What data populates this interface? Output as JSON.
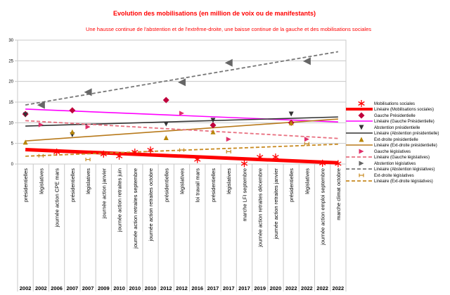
{
  "chart_data": {
    "type": "scatter",
    "title": "Evolution des mobilisations (en million de voix ou de manifestants)",
    "subtitle": "Une hausse continue de l'abstention et de l'extrême-droite, une baisse continue de la gauche et des mobilisations sociales",
    "xlabel": "",
    "ylabel": "",
    "ylim": [
      0,
      30
    ],
    "yticks": [
      0,
      5,
      10,
      15,
      20,
      25,
      30
    ],
    "grid": true,
    "legend_position": "right",
    "categories": [
      {
        "label": "présidentielles",
        "year": "2002"
      },
      {
        "label": "législatives",
        "year": "2002"
      },
      {
        "label": "journée action CPE mars",
        "year": "2006"
      },
      {
        "label": "présidentielles",
        "year": "2007"
      },
      {
        "label": "législatives",
        "year": "2007"
      },
      {
        "label": "journée action janvier",
        "year": "2009"
      },
      {
        "label": "journée action retraites juin",
        "year": "2010"
      },
      {
        "label": "journée action retraites septembre",
        "year": "2010"
      },
      {
        "label": "journée action retraites octobre",
        "year": "2010"
      },
      {
        "label": "présidentielles",
        "year": "2012"
      },
      {
        "label": "législatives",
        "year": "2012"
      },
      {
        "label": "loi travail mars",
        "year": "2016"
      },
      {
        "label": "présidentielles",
        "year": "2017"
      },
      {
        "label": "législatives",
        "year": "2017"
      },
      {
        "label": "marche LFI septembre",
        "year": "2017"
      },
      {
        "label": "journée action retraites décembre",
        "year": "2019"
      },
      {
        "label": "journée action retraites janvier",
        "year": "2020"
      },
      {
        "label": "présidentielles",
        "year": "2022"
      },
      {
        "label": "législatives",
        "year": "2022"
      },
      {
        "label": "journée action emploi septembre",
        "year": "2022"
      },
      {
        "label": "marche climat octobre",
        "year": "2022"
      }
    ],
    "series": [
      {
        "name": "Mobilisations sociales",
        "marker": "asterisk",
        "color": "#ff0000",
        "values": [
          null,
          null,
          2.9,
          null,
          null,
          2.4,
          1.9,
          2.9,
          3.4,
          null,
          null,
          1.1,
          null,
          null,
          0.1,
          1.7,
          1.7,
          null,
          null,
          0.2,
          0.1
        ],
        "trend": {
          "name": "Linéaire (Mobilisations sociales)",
          "start": 3.5,
          "end": 0.3,
          "style": "solid-thick"
        }
      },
      {
        "name": "Gauche Présidentielle",
        "marker": "diamond",
        "color": "#c0003c",
        "values": [
          12.1,
          null,
          null,
          13.0,
          null,
          null,
          null,
          null,
          null,
          15.5,
          null,
          null,
          9.4,
          null,
          null,
          null,
          null,
          10.0,
          null,
          null,
          null
        ],
        "trend": {
          "name": "Linéaire (Gauche Présidentielle)",
          "start": 13.3,
          "end": 10.2,
          "color": "#ff00ff",
          "style": "solid"
        }
      },
      {
        "name": "Abstention présidentielle",
        "marker": "triangle-down",
        "color": "#333333",
        "values": [
          11.9,
          null,
          null,
          7.1,
          null,
          null,
          null,
          null,
          null,
          9.7,
          null,
          null,
          10.6,
          null,
          null,
          null,
          null,
          12.1,
          null,
          null,
          null
        ],
        "trend": {
          "name": "Linéaire (Abstention présidentielle)",
          "start": 9.2,
          "end": 11.4,
          "color": "#333333",
          "style": "solid"
        }
      },
      {
        "name": "Ext-droite présidentielle",
        "marker": "triangle-up",
        "color": "#b8860b",
        "values": [
          5.3,
          null,
          null,
          7.8,
          null,
          null,
          null,
          null,
          null,
          6.4,
          null,
          null,
          7.8,
          null,
          null,
          null,
          null,
          10.0,
          null,
          null,
          null
        ],
        "trend": {
          "name": "Linéaire (Ext-droite présidentielle)",
          "start": 5.6,
          "end": 10.9,
          "color": "#b87a1c",
          "style": "solid"
        }
      },
      {
        "name": "Gauche législatives",
        "marker": "triangle-right",
        "color": "#e0306a",
        "values": [
          null,
          9.5,
          null,
          null,
          9.0,
          null,
          null,
          null,
          null,
          null,
          12.3,
          null,
          null,
          6.0,
          null,
          null,
          null,
          null,
          6.0,
          null,
          null
        ],
        "trend": {
          "name": "Linéaire (Gauche législatives)",
          "start": 10.5,
          "end": 6.2,
          "color": "#e87080",
          "style": "dashed"
        }
      },
      {
        "name": "Abstention législatives",
        "marker": "triangle-left",
        "color": "#666666",
        "values": [
          null,
          14.3,
          null,
          null,
          17.4,
          null,
          null,
          null,
          null,
          null,
          19.8,
          null,
          null,
          24.5,
          null,
          null,
          null,
          null,
          24.9,
          null,
          null
        ],
        "trend": {
          "name": "Linéaire (Abstention législatives)",
          "start": 14.3,
          "end": 27.2,
          "color": "#777777",
          "style": "dashed"
        }
      },
      {
        "name": "Ext-droite législatives",
        "marker": "bowtie",
        "color": "#c88a20",
        "values": [
          null,
          2.0,
          null,
          null,
          1.1,
          null,
          null,
          null,
          null,
          null,
          3.4,
          null,
          null,
          3.0,
          null,
          null,
          null,
          null,
          4.9,
          null,
          null
        ],
        "trend": {
          "name": "Linéaire (Ext-droite législatives)",
          "start": 1.9,
          "end": 4.8,
          "color": "#c88a20",
          "style": "dashed"
        }
      }
    ]
  }
}
